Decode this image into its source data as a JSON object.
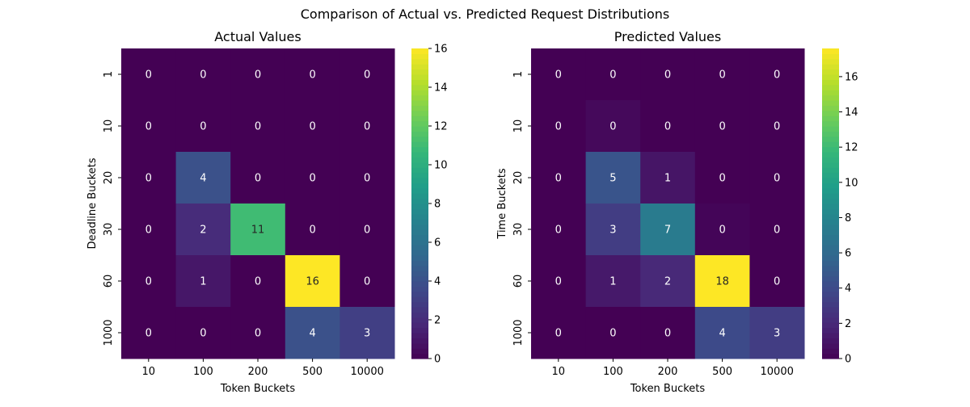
{
  "figure": {
    "suptitle": "Comparison of Actual vs. Predicted Request Distributions"
  },
  "colormap": [
    "#440154",
    "#482878",
    "#3e4989",
    "#31688e",
    "#26828e",
    "#1f9e89",
    "#35b779",
    "#6ece58",
    "#b5de2b",
    "#fde725"
  ],
  "chart_data": [
    {
      "type": "heatmap",
      "title": "Actual Values",
      "xlabel": "Token Buckets",
      "ylabel": "Deadline Buckets",
      "x_categories": [
        "10",
        "100",
        "200",
        "500",
        "10000"
      ],
      "y_categories": [
        "1",
        "10",
        "20",
        "30",
        "60",
        "1000"
      ],
      "values": [
        [
          0,
          0,
          0,
          0,
          0
        ],
        [
          0,
          0,
          0,
          0,
          0
        ],
        [
          0,
          4,
          0,
          0,
          0
        ],
        [
          0,
          2,
          11,
          0,
          0
        ],
        [
          0,
          1,
          0,
          16,
          0
        ],
        [
          0,
          0,
          0,
          4,
          3
        ]
      ],
      "cell_labels": [
        [
          "0",
          "0",
          "0",
          "0",
          "0"
        ],
        [
          "0",
          "0",
          "0",
          "0",
          "0"
        ],
        [
          "0",
          "4",
          "0",
          "0",
          "0"
        ],
        [
          "0",
          "2",
          "11",
          "0",
          "0"
        ],
        [
          "0",
          "1",
          "0",
          "16",
          "0"
        ],
        [
          "0",
          "0",
          "0",
          "4",
          "3"
        ]
      ],
      "colorbar": {
        "min": 0,
        "max": 16,
        "ticks": [
          0,
          2,
          4,
          6,
          8,
          10,
          12,
          14,
          16
        ],
        "tick_labels": [
          "0",
          "2",
          "4",
          "6",
          "8",
          "10",
          "12",
          "14",
          "16"
        ]
      }
    },
    {
      "type": "heatmap",
      "title": "Predicted Values",
      "xlabel": "Token Buckets",
      "ylabel": "Time Buckets",
      "x_categories": [
        "10",
        "100",
        "200",
        "500",
        "10000"
      ],
      "y_categories": [
        "1",
        "10",
        "20",
        "30",
        "60",
        "1000"
      ],
      "values": [
        [
          0,
          0,
          0,
          0,
          0
        ],
        [
          0,
          0.4,
          0,
          0,
          0
        ],
        [
          0,
          4.6,
          1.0,
          0,
          0
        ],
        [
          0,
          3.2,
          7.3,
          0.2,
          0
        ],
        [
          0,
          1.2,
          2.0,
          17.6,
          0
        ],
        [
          0,
          0,
          0,
          4.0,
          3.2
        ]
      ],
      "cell_labels": [
        [
          "0",
          "0",
          "0",
          "0",
          "0"
        ],
        [
          "0",
          "0",
          "0",
          "0",
          "0"
        ],
        [
          "0",
          "5",
          "1",
          "0",
          "0"
        ],
        [
          "0",
          "3",
          "7",
          "0",
          "0"
        ],
        [
          "0",
          "1",
          "2",
          "18",
          "0"
        ],
        [
          "0",
          "0",
          "0",
          "4",
          "3"
        ]
      ],
      "colorbar": {
        "min": 0,
        "max": 17.6,
        "ticks": [
          0,
          2,
          4,
          6,
          8,
          10,
          12,
          14,
          16
        ],
        "tick_labels": [
          "0",
          "2",
          "4",
          "6",
          "8",
          "10",
          "12",
          "14",
          "16"
        ]
      }
    }
  ]
}
